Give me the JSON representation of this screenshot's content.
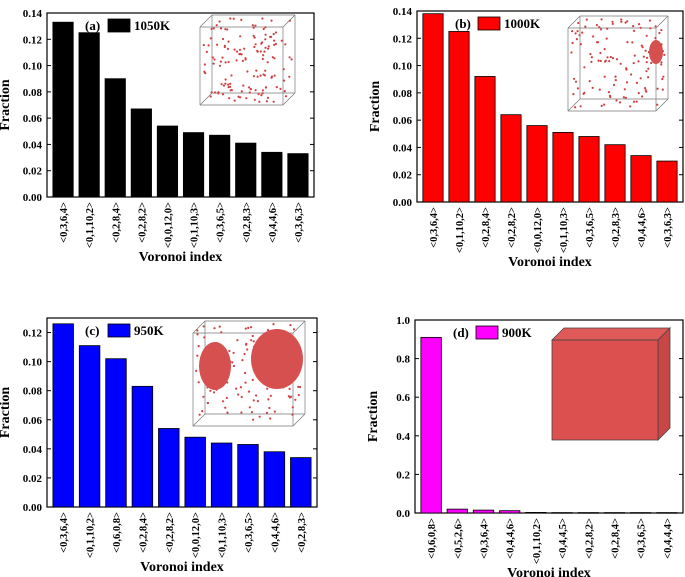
{
  "figure": {
    "panels": [
      {
        "label": "(a)",
        "temp": "1050K",
        "color": "#000000",
        "inset": "scattered-atoms"
      },
      {
        "label": "(b)",
        "temp": "1000K",
        "color": "#ff0000",
        "inset": "one-cluster"
      },
      {
        "label": "(c)",
        "temp": "950K",
        "color": "#0000ff",
        "inset": "two-clusters"
      },
      {
        "label": "(d)",
        "temp": "900K",
        "color": "#ff00ff",
        "inset": "full-crystal"
      }
    ]
  },
  "chart_data": [
    {
      "type": "bar",
      "title": "(a) 1050K",
      "xlabel": "Voronoi index",
      "ylabel": "Fraction",
      "ylim": [
        0,
        0.14
      ],
      "yticks": [
        "0.00",
        "0.02",
        "0.04",
        "0.06",
        "0.08",
        "0.10",
        "0.12",
        "0.14"
      ],
      "categories": [
        "<0,3,6,4>",
        "<0,1,10,2>",
        "<0,2,8,4>",
        "<0,2,8,2>",
        "<0,0,12,0>",
        "<0,1,10,3>",
        "<0,3,6,5>",
        "<0,2,8,3>",
        "<0,4,4,6>",
        "<0,3,6,3>"
      ],
      "values": [
        0.133,
        0.125,
        0.09,
        0.067,
        0.054,
        0.049,
        0.047,
        0.041,
        0.034,
        0.033
      ]
    },
    {
      "type": "bar",
      "title": "(b) 1000K",
      "xlabel": "Voronoi index",
      "ylabel": "Fraction",
      "ylim": [
        0,
        0.14
      ],
      "yticks": [
        "0.00",
        "0.02",
        "0.04",
        "0.06",
        "0.08",
        "0.10",
        "0.12",
        "0.14"
      ],
      "categories": [
        "<0,3,6,4>",
        "<0,1,10,2>",
        "<0,2,8,4>",
        "<0,2,8,2>",
        "<0,0,12,0>",
        "<0,1,10,3>",
        "<0,3,6,5>",
        "<0,2,8,3>",
        "<0,4,4,6>",
        "<0,3,6,3>"
      ],
      "values": [
        0.138,
        0.125,
        0.092,
        0.064,
        0.056,
        0.051,
        0.048,
        0.042,
        0.034,
        0.03
      ]
    },
    {
      "type": "bar",
      "title": "(c) 950K",
      "xlabel": "Voronoi index",
      "ylabel": "Fraction",
      "ylim": [
        0,
        0.13
      ],
      "yticks": [
        "0.00",
        "0.02",
        "0.04",
        "0.06",
        "0.08",
        "0.10",
        "0.12"
      ],
      "categories": [
        "<0,3,6,4>",
        "<0,1,10,2>",
        "<0,6,0,8>",
        "<0,2,8,4>",
        "<0,2,8,2>",
        "<0,0,12,0>",
        "<0,1,10,3>",
        "<0,3,6,5>",
        "<0,4,4,6>",
        "<0,2,8,3>"
      ],
      "values": [
        0.126,
        0.111,
        0.102,
        0.083,
        0.054,
        0.048,
        0.044,
        0.043,
        0.038,
        0.034
      ]
    },
    {
      "type": "bar",
      "title": "(d) 900K",
      "xlabel": "Voronoi index",
      "ylabel": "Fraction",
      "ylim": [
        0,
        1.0
      ],
      "yticks": [
        "0.0",
        "0.2",
        "0.4",
        "0.6",
        "0.8",
        "1.0"
      ],
      "categories": [
        "<0,6,0,8>",
        "<0,5,2,6>",
        "<0,3,6,4>",
        "<0,4,4,6>",
        "<0,1,10,2>",
        "<0,4,4,5>",
        "<0,2,8,2>",
        "<0,2,8,4>",
        "<0,3,6,5>",
        "<0,4,4,4>"
      ],
      "values": [
        0.91,
        0.02,
        0.015,
        0.012,
        0.003,
        0.002,
        0.002,
        0.002,
        0.002,
        0.002
      ]
    }
  ]
}
